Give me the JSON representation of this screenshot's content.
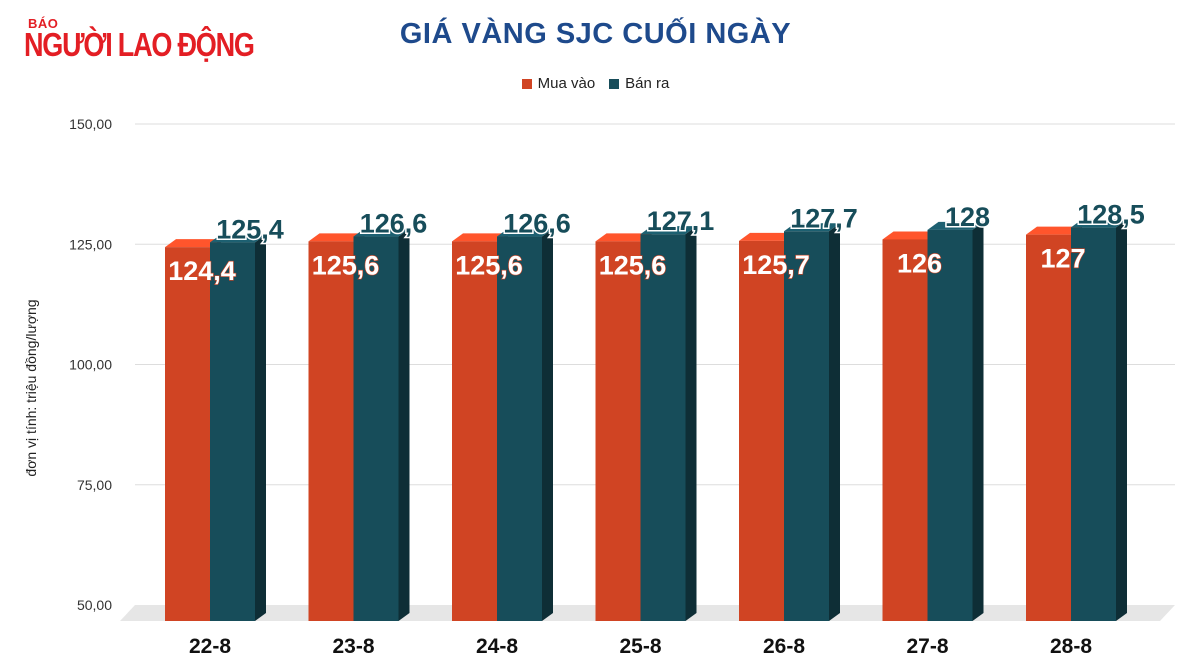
{
  "brand": {
    "kicker": "BÁO",
    "name": "NGƯỜI LAO ĐỘNG",
    "color": "#e31e24"
  },
  "chart_data": {
    "type": "bar",
    "title": "GIÁ VÀNG SJC CUỐI NGÀY",
    "xlabel": "",
    "ylabel": "đơn vị tính: triệu đồng/lượng",
    "categories": [
      "22-8",
      "23-8",
      "24-8",
      "25-8",
      "26-8",
      "27-8",
      "28-8"
    ],
    "series": [
      {
        "name": "Mua vào",
        "color": "#d04423",
        "values": [
          124.4,
          125.6,
          125.6,
          125.6,
          125.7,
          126,
          127
        ],
        "labels": [
          "124,4",
          "125,6",
          "125,6",
          "125,6",
          "125,7",
          "126",
          "127"
        ]
      },
      {
        "name": "Bán ra",
        "color": "#174d5a",
        "values": [
          125.4,
          126.6,
          126.6,
          127.1,
          127.7,
          128,
          128.5
        ],
        "labels": [
          "125,4",
          "126,6",
          "126,6",
          "127,1",
          "127,7",
          "128",
          "128,5"
        ]
      }
    ],
    "yticks": [
      50,
      75,
      100,
      125,
      150
    ],
    "ytick_labels": [
      "50,00",
      "75,00",
      "100,00",
      "125,00",
      "150,00"
    ],
    "ylim": [
      50,
      150
    ],
    "grid": true,
    "legend_position": "top-center"
  }
}
